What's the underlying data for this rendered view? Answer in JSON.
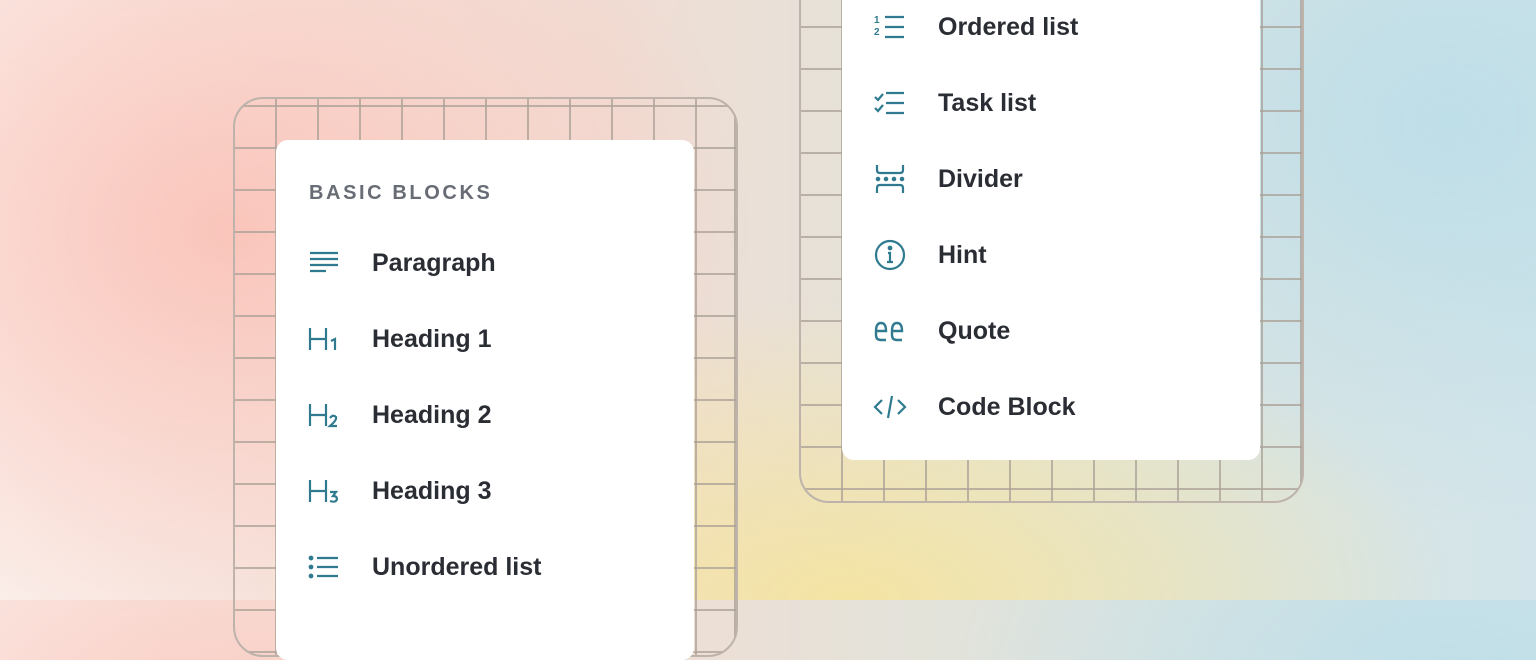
{
  "basic_blocks": {
    "label": "BASIC BLOCKS",
    "items": [
      {
        "label": "Paragraph",
        "icon": "paragraph-icon"
      },
      {
        "label": "Heading 1",
        "icon": "heading-1-icon"
      },
      {
        "label": "Heading 2",
        "icon": "heading-2-icon"
      },
      {
        "label": "Heading 3",
        "icon": "heading-3-icon"
      },
      {
        "label": "Unordered list",
        "icon": "unordered-list-icon"
      }
    ]
  },
  "more_blocks": {
    "items": [
      {
        "label": "Ordered list",
        "icon": "ordered-list-icon"
      },
      {
        "label": "Task list",
        "icon": "task-list-icon"
      },
      {
        "label": "Divider",
        "icon": "divider-icon"
      },
      {
        "label": "Hint",
        "icon": "info-icon"
      },
      {
        "label": "Quote",
        "icon": "quote-icon"
      },
      {
        "label": "Code Block",
        "icon": "code-icon"
      }
    ]
  },
  "colors": {
    "icon": "#2f7a8f",
    "text": "#2a2d33",
    "label": "#676c75"
  }
}
